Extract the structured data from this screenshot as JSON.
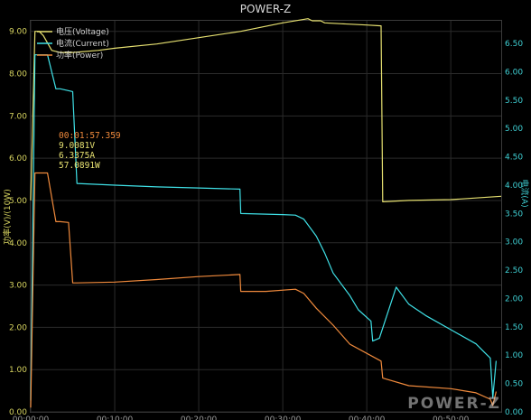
{
  "app_title": "POWER-Z",
  "watermark": "POWER-Z",
  "colors": {
    "background": "#000000",
    "voltage": "#e6e070",
    "current": "#3fe0e6",
    "power": "#f08a3c",
    "grid": "#2b2b2b",
    "left_axis": "#d8d560",
    "right_axis": "#3fd0d4"
  },
  "legend": [
    {
      "label": "电压(Voltage)",
      "icon": "voltage-legend-icon"
    },
    {
      "label": "电流(Current)",
      "icon": "current-legend-icon"
    },
    {
      "label": "功率(Power)",
      "icon": "power-legend-icon"
    }
  ],
  "readout": {
    "time": "00:01:57.359",
    "voltage": "9.0081V",
    "current": "6.3375A",
    "power": "57.0891W"
  },
  "chart_data": {
    "type": "line",
    "title": "POWER-Z",
    "xlabel": "",
    "ylabel_left": "功率(V)/(10W)",
    "ylabel_right": "电流(A)",
    "xlim": [
      0,
      56
    ],
    "ylim_left": [
      0,
      9.25
    ],
    "ylim_right": [
      0,
      6.9
    ],
    "x_unit": "minutes",
    "left_ticks": [
      "0.00",
      "1.00",
      "2.00",
      "3.00",
      "4.00",
      "5.00",
      "6.00",
      "7.00",
      "8.00",
      "9.00"
    ],
    "right_ticks": [
      "0.00",
      "0.50",
      "1.00",
      "1.50",
      "2.00",
      "2.50",
      "3.00",
      "3.50",
      "4.00",
      "4.50",
      "5.00",
      "5.50",
      "6.00",
      "6.50"
    ],
    "x_ticks": [
      "00:00:00",
      "00:10:00",
      "00:20:00",
      "00:30:00",
      "00:40:00",
      "00:50:00"
    ],
    "grid": true,
    "legend_position": "top-left",
    "series": [
      {
        "name": "电压(Voltage)",
        "axis": "left",
        "x": [
          0,
          0.5,
          1.0,
          1.5,
          2.5,
          3.5,
          5,
          8,
          10,
          15,
          20,
          25,
          30,
          33,
          33.5,
          34.5,
          35,
          37,
          40,
          41.7,
          41.9,
          45,
          50,
          56
        ],
        "values": [
          5.0,
          9.0,
          9.0,
          8.9,
          8.55,
          8.5,
          8.5,
          8.55,
          8.6,
          8.7,
          8.85,
          9.0,
          9.2,
          9.3,
          9.25,
          9.25,
          9.2,
          9.18,
          9.15,
          9.13,
          4.97,
          5.0,
          5.02,
          5.1
        ]
      },
      {
        "name": "电流(Current)",
        "axis": "right",
        "x": [
          0,
          0.5,
          1.0,
          2.0,
          3.0,
          3.5,
          5,
          5.5,
          10,
          15,
          20,
          24.9,
          25,
          30,
          31.5,
          32.5,
          34,
          35,
          36,
          38,
          39,
          40.5,
          40.7,
          41.5,
          43.5,
          45,
          47,
          50,
          53,
          54,
          54.7,
          55.0,
          55.4
        ],
        "values": [
          0.2,
          6.3,
          6.3,
          6.3,
          5.7,
          5.7,
          5.65,
          4.03,
          4.0,
          3.97,
          3.95,
          3.93,
          3.5,
          3.48,
          3.47,
          3.4,
          3.1,
          2.8,
          2.45,
          2.05,
          1.8,
          1.6,
          1.25,
          1.3,
          2.2,
          1.9,
          1.7,
          1.45,
          1.2,
          1.05,
          0.95,
          0.25,
          0.9
        ]
      },
      {
        "name": "功率(Power)",
        "axis": "left",
        "x": [
          0,
          0.5,
          1.0,
          2.0,
          3.0,
          3.5,
          4.5,
          5.0,
          5.5,
          10,
          15,
          20,
          24.9,
          25,
          28,
          31.5,
          32.5,
          34,
          36,
          38,
          41.7,
          41.9,
          45,
          50,
          53,
          54.7,
          55.0,
          55.4
        ],
        "values": [
          0.1,
          5.65,
          5.65,
          5.65,
          4.5,
          4.5,
          4.48,
          3.05,
          3.05,
          3.07,
          3.13,
          3.2,
          3.25,
          2.85,
          2.85,
          2.9,
          2.8,
          2.45,
          2.05,
          1.6,
          1.2,
          0.8,
          0.62,
          0.55,
          0.45,
          0.3,
          0.15,
          0.48
        ]
      }
    ]
  }
}
